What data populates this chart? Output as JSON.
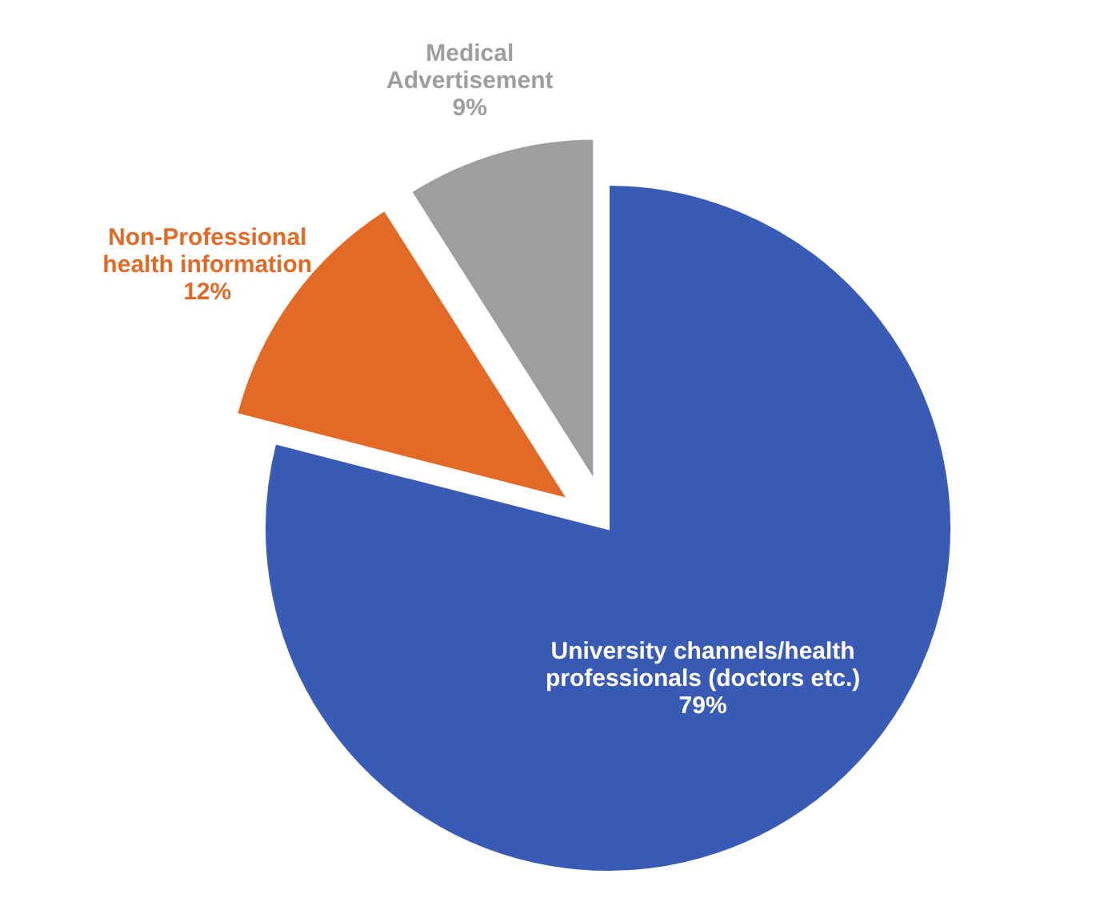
{
  "chart_data": {
    "type": "pie",
    "categories": [
      "University channels/health professionals (doctors etc.)",
      "Non-Professional health information",
      "Medical Advertisement"
    ],
    "values": [
      79,
      12,
      9
    ],
    "colors": [
      "#3a5bb5",
      "#e36a26",
      "#9e9e9e"
    ],
    "value_labels": [
      "79%",
      "12%",
      "9%"
    ]
  }
}
